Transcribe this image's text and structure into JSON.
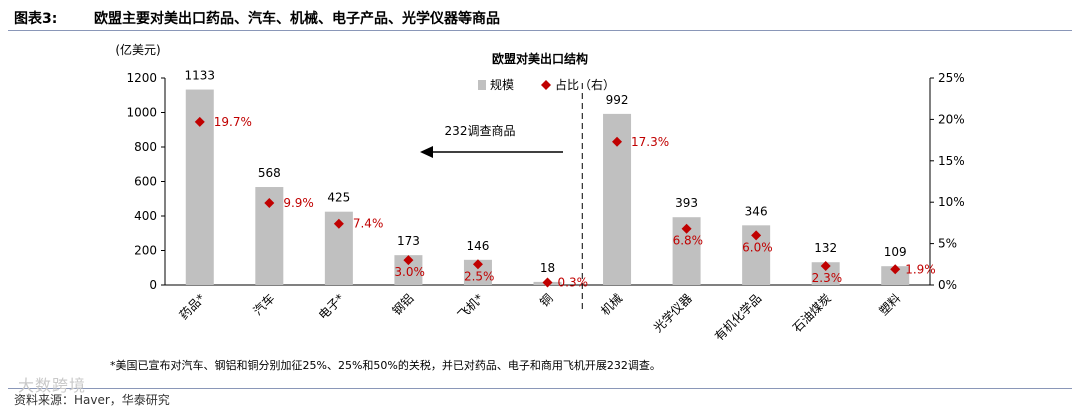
{
  "header": {
    "label": "图表3:",
    "title": "欧盟主要对美出口药品、汽车、机械、电子产品、光学仪器等商品"
  },
  "chart_data": {
    "type": "bar",
    "title": "欧盟对美出口结构",
    "ylabel": "(亿美元)",
    "ylim": [
      0,
      1200
    ],
    "yticks": [
      "0",
      "200",
      "400",
      "600",
      "800",
      "1000",
      "1200"
    ],
    "y2lim": [
      0,
      25
    ],
    "y2ticks": [
      "0%",
      "5%",
      "10%",
      "15%",
      "20%",
      "25%"
    ],
    "categories": [
      "药品*",
      "汽车",
      "电子*",
      "钢铝",
      "飞机*",
      "铜",
      "机械",
      "光学仪器",
      "有机化学品",
      "石油煤炭",
      "塑料"
    ],
    "series": [
      {
        "name": "规模",
        "type": "bar",
        "axis": "left",
        "values": [
          1133,
          568,
          425,
          173,
          146,
          18,
          992,
          393,
          346,
          132,
          109
        ],
        "labels": [
          "1133",
          "568",
          "425",
          "173",
          "146",
          "18",
          "992",
          "393",
          "346",
          "132",
          "109"
        ]
      },
      {
        "name": "占比（右）",
        "type": "scatter",
        "axis": "right",
        "values": [
          19.7,
          9.9,
          7.4,
          3.0,
          2.5,
          0.3,
          17.3,
          6.8,
          6.0,
          2.3,
          1.9
        ],
        "labels": [
          "19.7%",
          "9.9%",
          "7.4%",
          "3.0%",
          "2.5%",
          "0.3%",
          "17.3%",
          "6.8%",
          "6.0%",
          "2.3%",
          "1.9%"
        ]
      }
    ],
    "annotation": "232调查商品",
    "legend_position": "top-center",
    "colors": {
      "bar": "#c0c0c0",
      "marker": "#c00000",
      "pct_text": "#c00000"
    }
  },
  "footnote": "*美国已宣布对汽车、钢铝和铜分别加征25%、25%和50%的关税，并已对药品、电子和商用飞机开展232调查。",
  "source": "资料来源：Haver，华泰研究",
  "watermark": "大数跨境"
}
